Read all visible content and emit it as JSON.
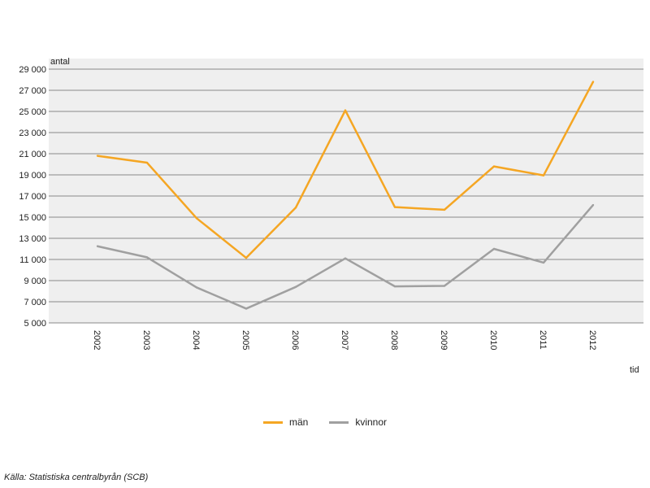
{
  "chart_data": {
    "type": "line",
    "xlabel": "tid",
    "ylabel": "antal",
    "ylim": [
      5000,
      29000
    ],
    "yticks": [
      5000,
      7000,
      9000,
      11000,
      13000,
      15000,
      17000,
      19000,
      21000,
      23000,
      25000,
      27000,
      29000
    ],
    "ytick_labels": [
      "5 000",
      "7 000",
      "9 000",
      "11 000",
      "13 000",
      "15 000",
      "17 000",
      "19 000",
      "21 000",
      "23 000",
      "25 000",
      "27 000",
      "29 000"
    ],
    "categories": [
      "2002",
      "2003",
      "2004",
      "2005",
      "2006",
      "2007",
      "2008",
      "2009",
      "2010",
      "2011",
      "2012"
    ],
    "grid": true,
    "legend_position": "bottom",
    "series": [
      {
        "name": "män",
        "color": "#f5a623",
        "values": [
          20800,
          20150,
          14900,
          11150,
          15900,
          25100,
          15950,
          15700,
          19800,
          18950,
          27800
        ]
      },
      {
        "name": "kvinnor",
        "color": "#a0a0a0",
        "values": [
          12250,
          11200,
          8350,
          6350,
          8400,
          11100,
          8450,
          8500,
          12000,
          10700,
          16150
        ]
      }
    ]
  },
  "source": "Källa: Statistiska centralbyrån (SCB)"
}
